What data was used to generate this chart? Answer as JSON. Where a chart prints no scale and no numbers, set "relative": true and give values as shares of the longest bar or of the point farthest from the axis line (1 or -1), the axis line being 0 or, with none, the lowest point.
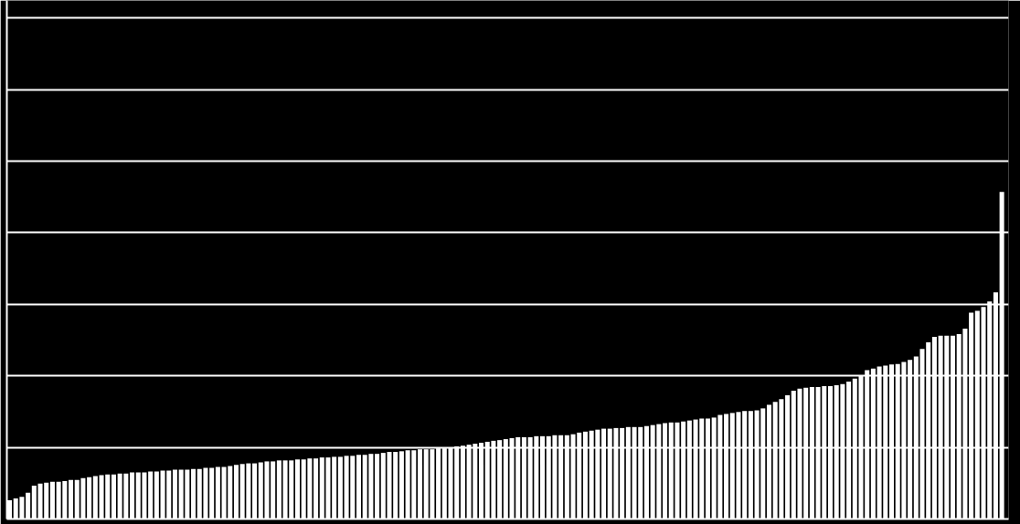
{
  "chart_data": {
    "type": "bar",
    "relative": true,
    "grid": "y",
    "color": "#ffffff",
    "categories": [
      null,
      null,
      null,
      null,
      null,
      null,
      null,
      null,
      null,
      null,
      null,
      null,
      null,
      null,
      null,
      null,
      null,
      null,
      null,
      null,
      null,
      null,
      null,
      null,
      null,
      null,
      null,
      null,
      null,
      null,
      null,
      null,
      null,
      null,
      null,
      null,
      null,
      null,
      null,
      null,
      null,
      null,
      null,
      null,
      null,
      null,
      null,
      null,
      null,
      null,
      null,
      null,
      null,
      null,
      null,
      null,
      null,
      null,
      null,
      null,
      null,
      null,
      null,
      null,
      null,
      null,
      null,
      null,
      null,
      null,
      null,
      null,
      null,
      null,
      null,
      null,
      null,
      null,
      null,
      null,
      null,
      null,
      null,
      null,
      null,
      null,
      null,
      null,
      null,
      null,
      null,
      null,
      null,
      null,
      null,
      null,
      null,
      null,
      null,
      null,
      null,
      null,
      null,
      null,
      null,
      null,
      null,
      null,
      null,
      null,
      null,
      null,
      null,
      null,
      null,
      null,
      null,
      null,
      null,
      null,
      null,
      null,
      null,
      null,
      null,
      null,
      null,
      null,
      null,
      null,
      null,
      null,
      null,
      null,
      null,
      null,
      null,
      null,
      null,
      null,
      null,
      null,
      null,
      null,
      null,
      null,
      null,
      null,
      null,
      null,
      null,
      null,
      null,
      null,
      null,
      null,
      null,
      null,
      null,
      null,
      null,
      null,
      null
    ],
    "values": [
      0.057,
      0.063,
      0.068,
      0.08,
      0.102,
      0.108,
      0.111,
      0.114,
      0.114,
      0.116,
      0.119,
      0.119,
      0.125,
      0.128,
      0.131,
      0.134,
      0.136,
      0.136,
      0.139,
      0.139,
      0.142,
      0.142,
      0.142,
      0.145,
      0.145,
      0.148,
      0.148,
      0.151,
      0.151,
      0.151,
      0.153,
      0.153,
      0.156,
      0.156,
      0.159,
      0.159,
      0.162,
      0.165,
      0.168,
      0.17,
      0.17,
      0.173,
      0.176,
      0.176,
      0.179,
      0.179,
      0.179,
      0.182,
      0.182,
      0.185,
      0.185,
      0.188,
      0.188,
      0.19,
      0.19,
      0.193,
      0.193,
      0.196,
      0.196,
      0.199,
      0.199,
      0.202,
      0.205,
      0.205,
      0.207,
      0.21,
      0.21,
      0.213,
      0.213,
      0.213,
      0.216,
      0.216,
      0.219,
      0.222,
      0.224,
      0.227,
      0.23,
      0.233,
      0.236,
      0.239,
      0.241,
      0.244,
      0.247,
      0.25,
      0.25,
      0.25,
      0.253,
      0.253,
      0.253,
      0.256,
      0.256,
      0.256,
      0.259,
      0.264,
      0.267,
      0.27,
      0.273,
      0.276,
      0.276,
      0.278,
      0.278,
      0.281,
      0.281,
      0.281,
      0.284,
      0.287,
      0.29,
      0.293,
      0.295,
      0.295,
      0.298,
      0.301,
      0.304,
      0.307,
      0.307,
      0.31,
      0.318,
      0.321,
      0.324,
      0.327,
      0.33,
      0.33,
      0.332,
      0.338,
      0.349,
      0.358,
      0.366,
      0.378,
      0.392,
      0.398,
      0.401,
      0.403,
      0.403,
      0.406,
      0.406,
      0.409,
      0.412,
      0.42,
      0.429,
      0.438,
      0.455,
      0.46,
      0.466,
      0.469,
      0.472,
      0.474,
      0.48,
      0.486,
      0.497,
      0.52,
      0.54,
      0.557,
      0.56,
      0.56,
      0.56,
      0.565,
      0.582,
      0.631,
      0.636,
      0.648,
      0.665,
      0.693,
      1
    ]
  }
}
